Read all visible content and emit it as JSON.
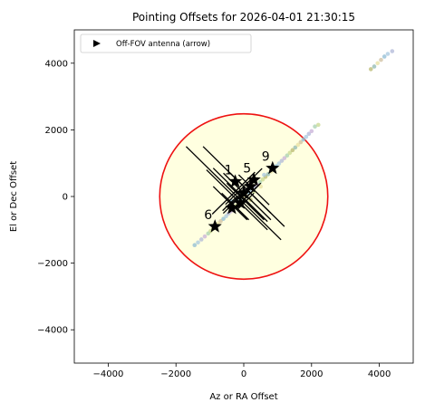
{
  "chart_data": {
    "type": "scatter",
    "title": "Pointing Offsets for 2026-04-01 21:30:15",
    "xlabel": "Az or RA Offset",
    "ylabel": "El or Dec Offset",
    "xlim": [
      -5000,
      5000
    ],
    "ylim": [
      -5000,
      5000
    ],
    "xticks": [
      -4000,
      -2000,
      0,
      2000,
      4000
    ],
    "yticks": [
      -4000,
      -2000,
      0,
      2000,
      4000
    ],
    "xtick_labels": [
      "−4000",
      "−2000",
      "0",
      "2000",
      "4000"
    ],
    "ytick_labels": [
      "−4000",
      "−2000",
      "0",
      "2000",
      "4000"
    ],
    "grid": false,
    "legend": {
      "placement": "top-left",
      "entries": [
        {
          "label": "Off-FOV antenna (arrow)",
          "marker": "triangle-right",
          "color": "#000000"
        }
      ]
    },
    "fov_circle": {
      "center": [
        0,
        0
      ],
      "radius": 2480,
      "edge_color": "#ee1111",
      "fill_color": "#ffffe0"
    },
    "dot_colors": [
      "#8fbcd4",
      "#a8c8e0",
      "#b0b8d8",
      "#c8b0d8",
      "#a8d0b0",
      "#c8d890",
      "#b8b870",
      "#90b8b0",
      "#e8e0a0",
      "#d0c0a0"
    ],
    "trail_dots": [
      [
        -1450,
        -1460
      ],
      [
        -1350,
        -1380
      ],
      [
        -1250,
        -1290
      ],
      [
        -1150,
        -1200
      ],
      [
        -1050,
        -1110
      ],
      [
        -980,
        -1040
      ],
      [
        -900,
        -960
      ],
      [
        -820,
        -880
      ],
      [
        -750,
        -810
      ],
      [
        -680,
        -740
      ],
      [
        -600,
        -670
      ],
      [
        -520,
        -590
      ],
      [
        -450,
        -510
      ],
      [
        -380,
        -440
      ],
      [
        -300,
        -360
      ],
      [
        -220,
        -280
      ],
      [
        -150,
        -200
      ],
      [
        -80,
        -120
      ],
      [
        0,
        -40
      ],
      [
        80,
        40
      ],
      [
        160,
        110
      ],
      [
        240,
        190
      ],
      [
        320,
        270
      ],
      [
        400,
        350
      ],
      [
        480,
        430
      ],
      [
        560,
        510
      ],
      [
        640,
        590
      ],
      [
        720,
        670
      ],
      [
        800,
        750
      ],
      [
        880,
        830
      ],
      [
        960,
        910
      ],
      [
        1040,
        990
      ],
      [
        1120,
        1070
      ],
      [
        1200,
        1150
      ],
      [
        1280,
        1230
      ],
      [
        1360,
        1310
      ],
      [
        1440,
        1390
      ],
      [
        1520,
        1470
      ],
      [
        1600,
        1550
      ],
      [
        1680,
        1630
      ],
      [
        1760,
        1710
      ],
      [
        1840,
        1790
      ],
      [
        1920,
        1880
      ],
      [
        2000,
        1960
      ],
      [
        2100,
        2100
      ],
      [
        2200,
        2150
      ],
      [
        3750,
        3820
      ],
      [
        3850,
        3900
      ],
      [
        3950,
        4000
      ],
      [
        4050,
        4100
      ],
      [
        4150,
        4200
      ],
      [
        4250,
        4280
      ],
      [
        4380,
        4360
      ],
      [
        100,
        200
      ],
      [
        -100,
        100
      ],
      [
        300,
        150
      ],
      [
        200,
        -100
      ],
      [
        -200,
        -100
      ],
      [
        500,
        300
      ],
      [
        150,
        400
      ],
      [
        -350,
        -150
      ],
      [
        600,
        650
      ]
    ],
    "crosses": [
      {
        "center": [
          -300,
          100
        ],
        "half_span": 1400
      },
      {
        "center": [
          0,
          300
        ],
        "half_span": 1200
      },
      {
        "center": [
          -200,
          -100
        ],
        "half_span": 900
      },
      {
        "center": [
          100,
          0
        ],
        "half_span": 700
      },
      {
        "center": [
          -400,
          -200
        ],
        "half_span": 500
      },
      {
        "center": [
          200,
          100
        ],
        "half_span": 600
      },
      {
        "center": [
          -100,
          50
        ],
        "half_span": 800
      },
      {
        "center": [
          50,
          -150
        ],
        "half_span": 550
      },
      {
        "center": [
          300,
          200
        ],
        "half_span": 450
      },
      {
        "center": [
          -250,
          -300
        ],
        "half_span": 400
      }
    ],
    "stars": [
      {
        "label": "9",
        "x": 850,
        "y": 850
      },
      {
        "label": "6",
        "x": -850,
        "y": -900
      },
      {
        "label": "1",
        "x": -250,
        "y": 450
      },
      {
        "label": "5",
        "x": 300,
        "y": 500
      },
      {
        "label": "",
        "x": -350,
        "y": -350
      },
      {
        "label": "",
        "x": 0,
        "y": 100
      },
      {
        "label": "",
        "x": 200,
        "y": 300
      },
      {
        "label": "",
        "x": -100,
        "y": -200
      }
    ]
  }
}
